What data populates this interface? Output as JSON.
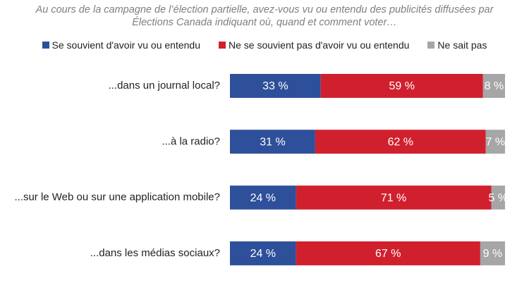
{
  "chart_data": {
    "type": "stacked-barh",
    "title": "Au cours de la campagne de l’élection partielle, avez-vous vu ou entendu des publicités diffusées par Élections Canada indiquant où, quand et comment voter…",
    "categories": [
      "...dans un journal local?",
      "...à la radio?",
      "...sur le Web ou sur une application mobile?",
      "...dans les médias sociaux?"
    ],
    "series": [
      {
        "name": "Se souvient d'avoir vu ou entendu",
        "color": "#2e4f9a",
        "values": [
          33,
          31,
          24,
          24
        ],
        "value_labels": [
          "33 %",
          "31 %",
          "24 %",
          "24 %"
        ]
      },
      {
        "name": "Ne se souvient pas d'avoir vu ou entendu",
        "color": "#d0202e",
        "values": [
          59,
          62,
          71,
          67
        ],
        "value_labels": [
          "59 %",
          "62 %",
          "71 %",
          "67 %"
        ]
      },
      {
        "name": "Ne sait pas",
        "color": "#a6a6a6",
        "values": [
          8,
          7,
          5,
          9
        ],
        "value_labels": [
          "8 %",
          "7 %",
          "5 %",
          "9 %"
        ]
      }
    ]
  }
}
